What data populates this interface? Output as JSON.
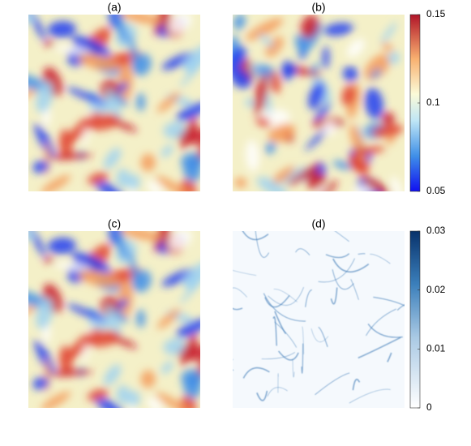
{
  "panels": [
    {
      "label": "(a)"
    },
    {
      "label": "(b)"
    },
    {
      "label": "(c)"
    },
    {
      "label": "(d)"
    }
  ],
  "colorbars": [
    {
      "lim": [
        0.05,
        0.15
      ],
      "ticks": [
        0.05,
        0.1,
        0.15
      ]
    },
    {
      "lim": [
        0,
        0.03
      ],
      "ticks": [
        0,
        0.01,
        0.02,
        0.03
      ]
    }
  ]
}
